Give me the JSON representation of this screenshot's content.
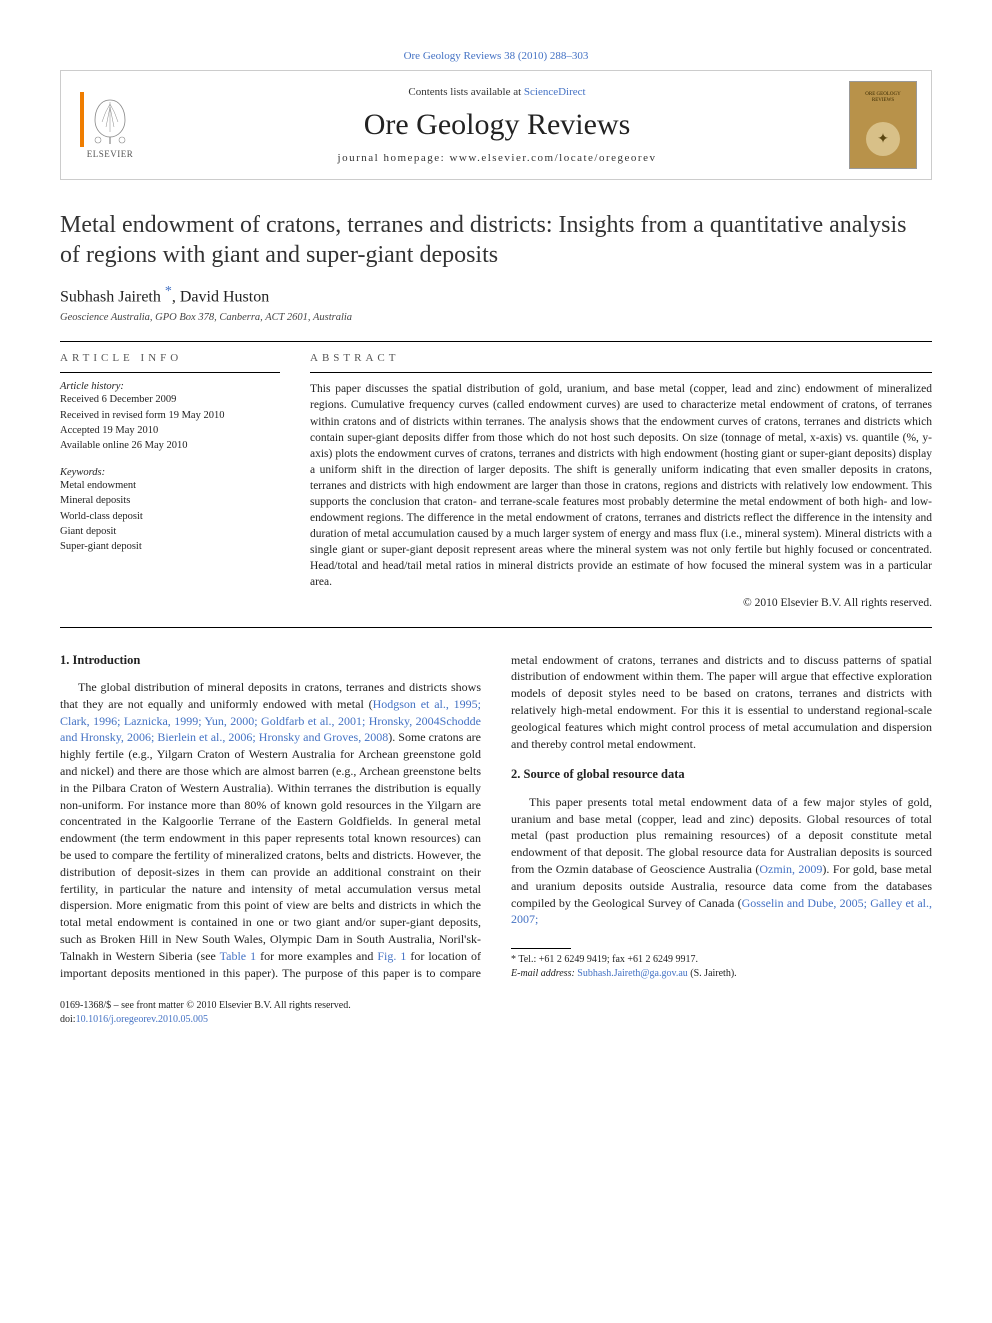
{
  "top_link": {
    "citation": "Ore Geology Reviews 38 (2010) 288–303"
  },
  "header": {
    "contents_prefix": "Contents lists available at ",
    "contents_link": "ScienceDirect",
    "journal_name": "Ore Geology Reviews",
    "homepage_label": "journal homepage: www.elsevier.com/locate/oregeorev",
    "publisher": "ELSEVIER",
    "cover_title": "ORE GEOLOGY REVIEWS"
  },
  "article": {
    "title": "Metal endowment of cratons, terranes and districts: Insights from a quantitative analysis of regions with giant and super-giant deposits",
    "authors_html": "Subhash Jaireth <span class='star'>*</span>, David Huston",
    "affiliation": "Geoscience Australia, GPO Box 378, Canberra, ACT 2601, Australia"
  },
  "info": {
    "label": "ARTICLE INFO",
    "history_label": "Article history:",
    "history": "Received 6 December 2009\nReceived in revised form 19 May 2010\nAccepted 19 May 2010\nAvailable online 26 May 2010",
    "keywords_label": "Keywords:",
    "keywords": "Metal endowment\nMineral deposits\nWorld-class deposit\nGiant deposit\nSuper-giant deposit"
  },
  "abstract": {
    "label": "ABSTRACT",
    "text": "This paper discusses the spatial distribution of gold, uranium, and base metal (copper, lead and zinc) endowment of mineralized regions. Cumulative frequency curves (called endowment curves) are used to characterize metal endowment of cratons, of terranes within cratons and of districts within terranes. The analysis shows that the endowment curves of cratons, terranes and districts which contain super-giant deposits differ from those which do not host such deposits. On size (tonnage of metal, x-axis) vs. quantile (%, y-axis) plots the endowment curves of cratons, terranes and districts with high endowment (hosting giant or super-giant deposits) display a uniform shift in the direction of larger deposits. The shift is generally uniform indicating that even smaller deposits in cratons, terranes and districts with high endowment are larger than those in cratons, regions and districts with relatively low endowment. This supports the conclusion that craton- and terrane-scale features most probably determine the metal endowment of both high- and low-endowment regions. The difference in the metal endowment of cratons, terranes and districts reflect the difference in the intensity and duration of metal accumulation caused by a much larger system of energy and mass flux (i.e., mineral system). Mineral districts with a single giant or super-giant deposit represent areas where the mineral system was not only fertile but highly focused or concentrated. Head/total and head/tail metal ratios in mineral districts provide an estimate of how focused the mineral system was in a particular area.",
    "copyright": "© 2010 Elsevier B.V. All rights reserved."
  },
  "body": {
    "intro_heading": "1. Introduction",
    "intro_p1_pre": "The global distribution of mineral deposits in cratons, terranes and districts shows that they are not equally and uniformly endowed with metal (",
    "intro_p1_refs": "Hodgson et al., 1995; Clark, 1996; Laznicka, 1999; Yun, 2000; Goldfarb et al., 2001; Hronsky, 2004Schodde and Hronsky, 2006; Bierlein et al., 2006; Hronsky and Groves, 2008",
    "intro_p1_post": "). Some cratons are highly fertile (e.g., Yilgarn Craton of Western Australia for Archean greenstone gold and nickel) and there are those which are almost barren (e.g., Archean greenstone belts in the Pilbara Craton of Western Australia). Within terranes the distribution is equally non-uniform. For instance more than 80% of known gold resources in the Yilgarn are concentrated in the Kalgoorlie Terrane of the Eastern Goldfields. In general metal endowment (the term endowment in this paper represents total known resources) can be used to compare the fertility of mineralized cratons, belts and districts. However, the distribution of deposit-sizes in them can provide an additional constraint on their fertility, in particular the nature and intensity of metal accumulation versus metal dispersion. More enigmatic from this point of view are belts and districts in which the total metal ",
    "intro_p1_col2_pre": "endowment is contained in one or two giant and/or super-giant deposits, such as Broken Hill in New South Wales, Olympic Dam in South Australia, Noril'sk-Talnakh in Western Siberia (see ",
    "intro_p1_table": "Table 1",
    "intro_p1_mid": " for more examples and ",
    "intro_p1_fig": "Fig. 1",
    "intro_p1_end": " for location of important deposits mentioned in this paper). The purpose of this paper is to compare metal endowment of cratons, terranes and districts and to discuss patterns of spatial distribution of endowment within them. The paper will argue that effective exploration models of deposit styles need to be based on cratons, terranes and districts with relatively high-metal endowment. For this it is essential to understand regional-scale geological features which might control process of metal accumulation and dispersion and thereby control metal endowment.",
    "source_heading": "2. Source of global resource data",
    "source_p1_pre": "This paper presents total metal endowment data of a few major styles of gold, uranium and base metal (copper, lead and zinc) deposits. Global resources of total metal (past production plus remaining resources) of a deposit constitute metal endowment of that deposit. The global resource data for Australian deposits is sourced from the Ozmin database of Geoscience Australia (",
    "source_p1_ref1": "Ozmin, 2009",
    "source_p1_mid": "). For gold, base metal and uranium deposits outside Australia, resource data come from the databases compiled by the Geological Survey of Canada (",
    "source_p1_ref2": "Gosselin and Dube, 2005; Galley et al., 2007;"
  },
  "footnotes": {
    "corr": "* Tel.: +61 2 6249 9419; fax +61 2 6249 9917.",
    "email_label": "E-mail address: ",
    "email": "Subhash.Jaireth@ga.gov.au",
    "email_post": " (S. Jaireth)."
  },
  "footer": {
    "issn": "0169-1368/$ – see front matter © 2010 Elsevier B.V. All rights reserved.",
    "doi_label": "doi:",
    "doi": "10.1016/j.oregeorev.2010.05.005"
  },
  "colors": {
    "link": "#4472c4",
    "elsevier_orange": "#ef7d00",
    "cover_bg": "#b8924a"
  }
}
